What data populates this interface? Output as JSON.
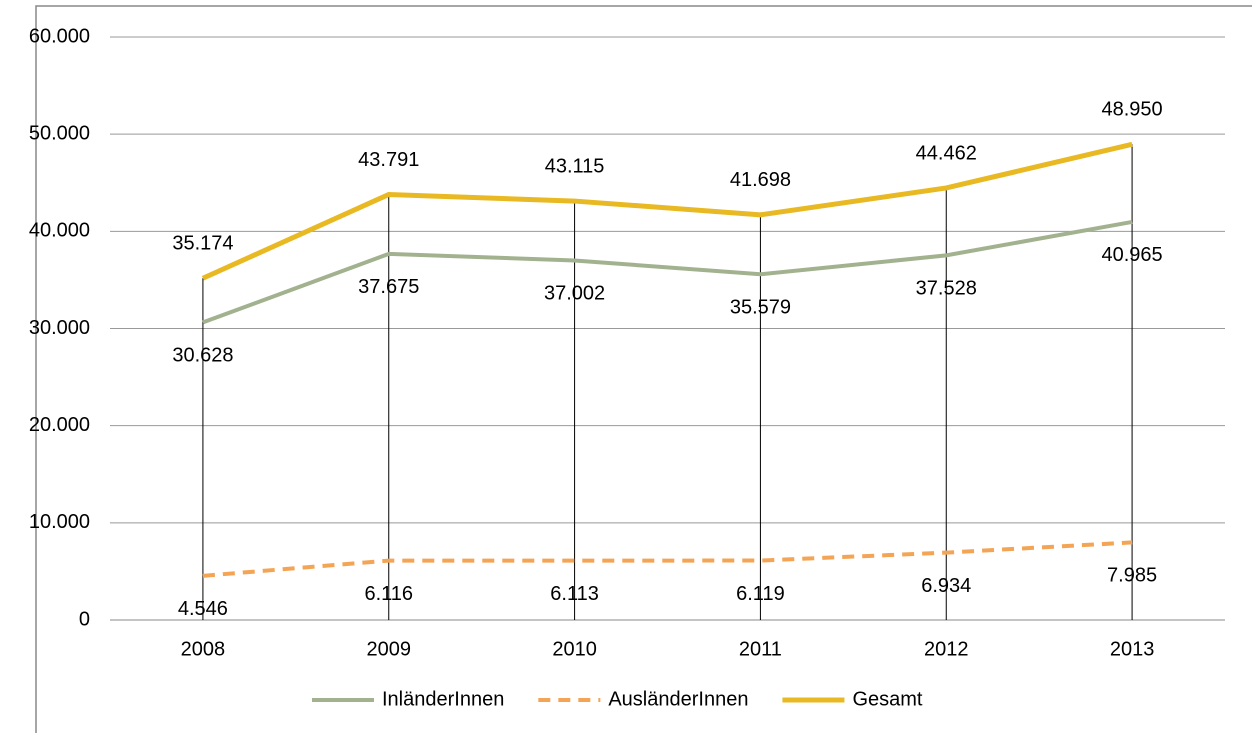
{
  "chart_data": {
    "type": "line",
    "categories": [
      "2008",
      "2009",
      "2010",
      "2011",
      "2012",
      "2013"
    ],
    "series": [
      {
        "name": "InländerInnen",
        "color": "#a2b28f",
        "dashed": false,
        "label_position": "below",
        "values": [
          30628,
          37675,
          37002,
          35579,
          37528,
          40965
        ],
        "value_labels": [
          "30.628",
          "37.675",
          "37.002",
          "35.579",
          "37.528",
          "40.965"
        ]
      },
      {
        "name": "AusländerInnen",
        "color": "#f4a455",
        "dashed": true,
        "label_position": "below",
        "values": [
          4546,
          6116,
          6113,
          6119,
          6934,
          7985
        ],
        "value_labels": [
          "4.546",
          "6.116",
          "6.113",
          "6.119",
          "6.934",
          "7.985"
        ]
      },
      {
        "name": "Gesamt",
        "color": "#e8b923",
        "dashed": false,
        "label_position": "above",
        "values": [
          35174,
          43791,
          43115,
          41698,
          44462,
          48950
        ],
        "value_labels": [
          "35.174",
          "43.791",
          "43.115",
          "41.698",
          "44.462",
          "48.950"
        ]
      }
    ],
    "ylim": [
      0,
      60000
    ],
    "yticks": [
      0,
      {
        "value": 10000,
        "label": "10.000"
      },
      {
        "value": 20000,
        "label": "20.000"
      },
      {
        "value": 30000,
        "label": "30.000"
      },
      {
        "value": 40000,
        "label": "40.000"
      },
      {
        "value": 50000,
        "label": "50.000"
      },
      {
        "value": 60000,
        "label": "60.000"
      }
    ],
    "grid": true,
    "drop_lines": true,
    "legend": "bottom"
  }
}
